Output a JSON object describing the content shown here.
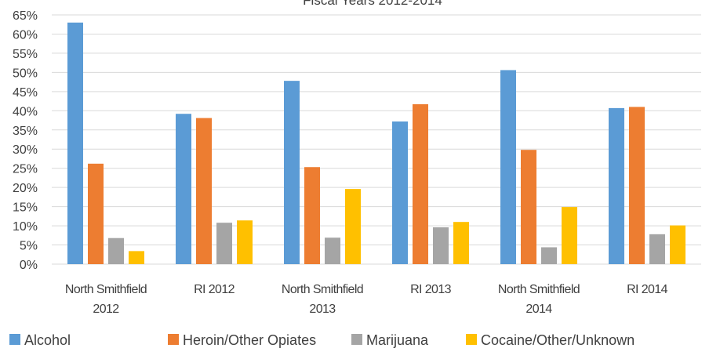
{
  "chart_data": {
    "type": "bar",
    "title": "Fiscal Years 2012-2014",
    "xlabel": "",
    "ylabel": "",
    "ylim": [
      0,
      65
    ],
    "ytick_step": 5,
    "ytick_suffix": "%",
    "grid": true,
    "legend_position": "bottom",
    "categories": [
      [
        "North Smithfield",
        "2012"
      ],
      [
        "RI 2012"
      ],
      [
        "North Smithfield",
        "2013"
      ],
      [
        "RI 2013"
      ],
      [
        "North Smithfield",
        "2014"
      ],
      [
        "RI 2014"
      ]
    ],
    "series": [
      {
        "name": "Alcohol",
        "color": "#5b9bd5",
        "values": [
          63.0,
          39.2,
          47.8,
          37.2,
          50.6,
          40.7
        ]
      },
      {
        "name": "Heroin/Other Opiates",
        "color": "#ed7d31",
        "values": [
          26.2,
          38.1,
          25.3,
          41.7,
          29.8,
          41.0
        ]
      },
      {
        "name": "Marijuana",
        "color": "#a5a5a5",
        "values": [
          6.8,
          10.8,
          6.9,
          9.6,
          4.4,
          7.8
        ]
      },
      {
        "name": "Cocaine/Other/Unknown",
        "color": "#ffc000",
        "values": [
          3.4,
          11.4,
          19.6,
          11.0,
          14.9,
          10.1
        ]
      }
    ]
  }
}
